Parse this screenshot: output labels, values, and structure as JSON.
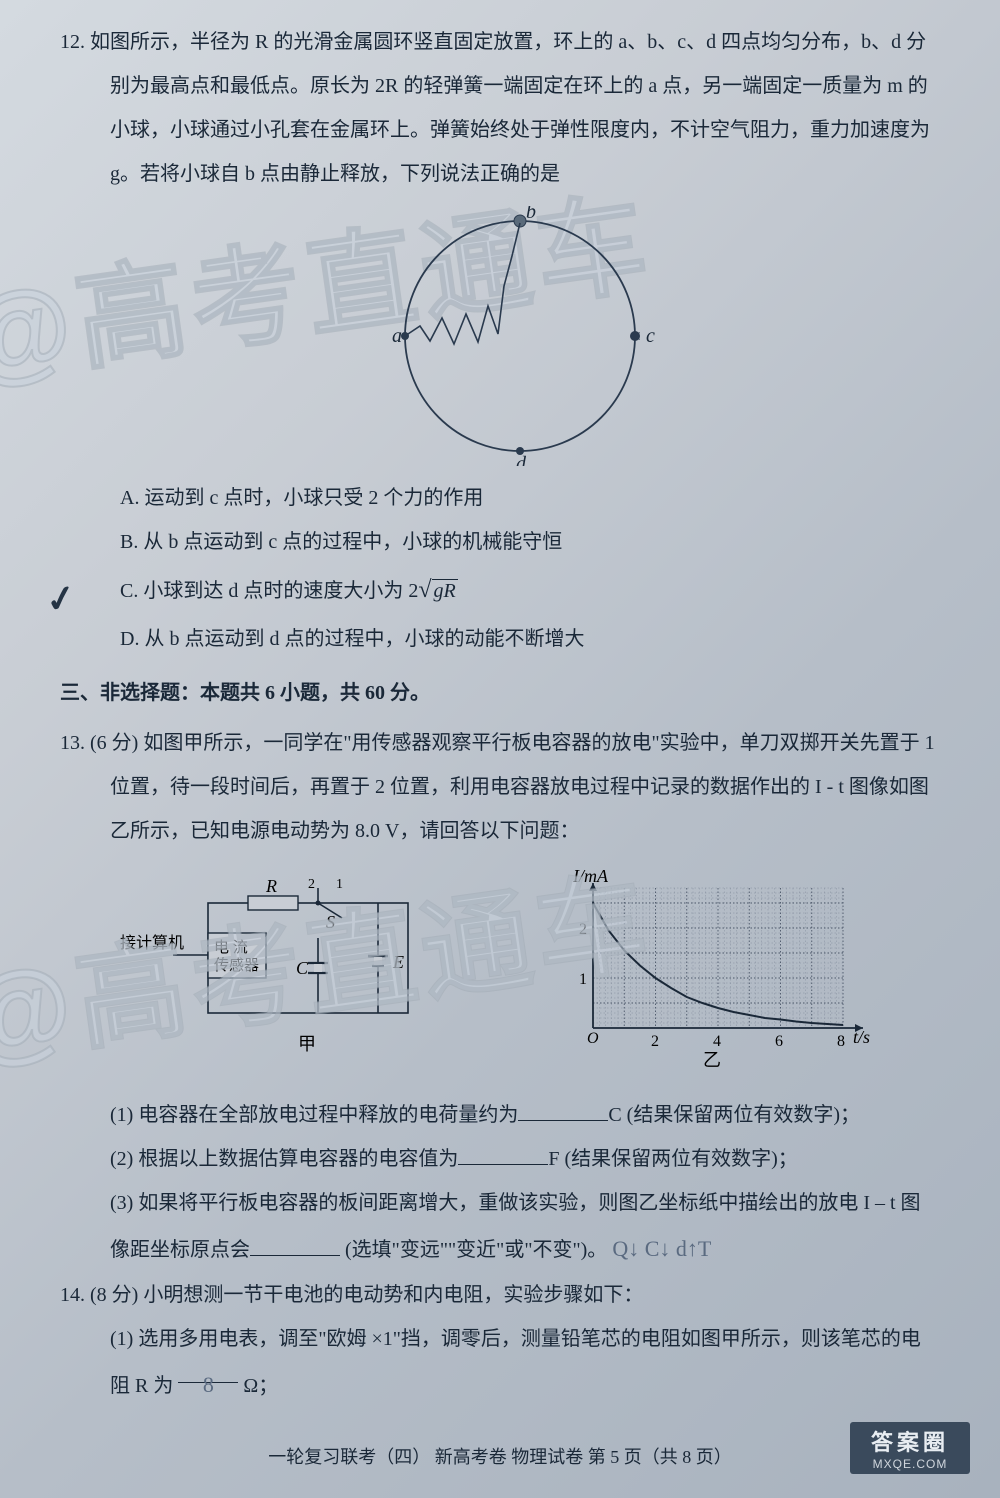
{
  "watermark": "@高考直通车",
  "q12": {
    "num": "12.",
    "text": "如图所示，半径为 R 的光滑金属圆环竖直固定放置，环上的 a、b、c、d 四点均匀分布，b、d 分别为最高点和最低点。原长为 2R 的轻弹簧一端固定在环上的 a 点，另一端固定一质量为 m 的小球，小球通过小孔套在金属环上。弹簧始终处于弹性限度内，不计空气阻力，重力加速度为 g。若将小球自 b 点由静止释放，下列说法正确的是",
    "diagram": {
      "labels": {
        "a": "a",
        "b": "b",
        "c": "c",
        "d": "d"
      },
      "radius": 115,
      "stroke": "#2a3a4e"
    },
    "optA": "A. 运动到 c 点时，小球只受 2 个力的作用",
    "optB": "B. 从 b 点运动到 c 点的过程中，小球的机械能守恒",
    "optC_pre": "C. 小球到达 d 点时的速度大小为 2",
    "optC_rad": "gR",
    "optD": "D. 从 b 点运动到 d 点的过程中，小球的动能不断增大"
  },
  "section3": "三、非选择题：本题共 6 小题，共 60 分。",
  "q13": {
    "num": "13.",
    "pts": "(6 分)",
    "text": "如图甲所示，一同学在\"用传感器观察平行板电容器的放电\"实验中，单刀双掷开关先置于 1 位置，待一段时间后，再置于 2 位置，利用电容器放电过程中记录的数据作出的 I - t 图像如图乙所示，已知电源电动势为 8.0 V，请回答以下问题：",
    "circuit": {
      "labels": {
        "computer": "接计算机",
        "sensor1": "电 流",
        "sensor2": "传感器",
        "R": "R",
        "S": "S",
        "C": "C",
        "E": "E",
        "two": "2",
        "one": "1",
        "cap_jia": "甲",
        "cap_yi": "乙"
      }
    },
    "graph": {
      "ylabel": "I/mA",
      "xlabel": "t/s",
      "xticks": [
        "O",
        "2",
        "4",
        "6",
        "8"
      ],
      "yticks": [
        "1",
        "2"
      ],
      "curve": [
        [
          0,
          2.5
        ],
        [
          0.5,
          1.95
        ],
        [
          1,
          1.55
        ],
        [
          1.5,
          1.25
        ],
        [
          2,
          1.0
        ],
        [
          2.5,
          0.8
        ],
        [
          3,
          0.62
        ],
        [
          3.5,
          0.5
        ],
        [
          4,
          0.4
        ],
        [
          4.5,
          0.32
        ],
        [
          5,
          0.26
        ],
        [
          5.5,
          0.2
        ],
        [
          6,
          0.17
        ],
        [
          6.5,
          0.13
        ],
        [
          7,
          0.1
        ],
        [
          7.5,
          0.08
        ],
        [
          8,
          0.06
        ]
      ],
      "grid_color": "#556070",
      "axis_color": "#1a2838"
    },
    "sub1_pre": "(1) 电容器在全部放电过程中释放的电荷量约为",
    "sub1_post": "C (结果保留两位有效数字)；",
    "sub2_pre": "(2) 根据以上数据估算电容器的电容值为",
    "sub2_post": "F (结果保留两位有效数字)；",
    "sub3": "(3) 如果将平行板电容器的板间距离增大，重做该实验，则图乙坐标纸中描绘出的放电 I – t 图像距坐标原点会",
    "sub3_post": " (选填\"变远\"\"变近\"或\"不变\")。"
  },
  "q14": {
    "num": "14.",
    "pts": "(8 分)",
    "text": "小明想测一节干电池的电动势和内电阻，实验步骤如下：",
    "sub1_pre": "(1) 选用多用电表，调至\"欧姆 ×1\"挡，调零后，测量铅笔芯的电阻如图甲所示，则该笔芯的电阻 R 为",
    "sub1_ans": "8",
    "sub1_post": "Ω；"
  },
  "footer": "一轮复习联考（四）   新高考卷    物理试卷    第 5 页（共 8 页）",
  "answerbox": {
    "big": "答案圈",
    "small": "MXQE.COM"
  }
}
